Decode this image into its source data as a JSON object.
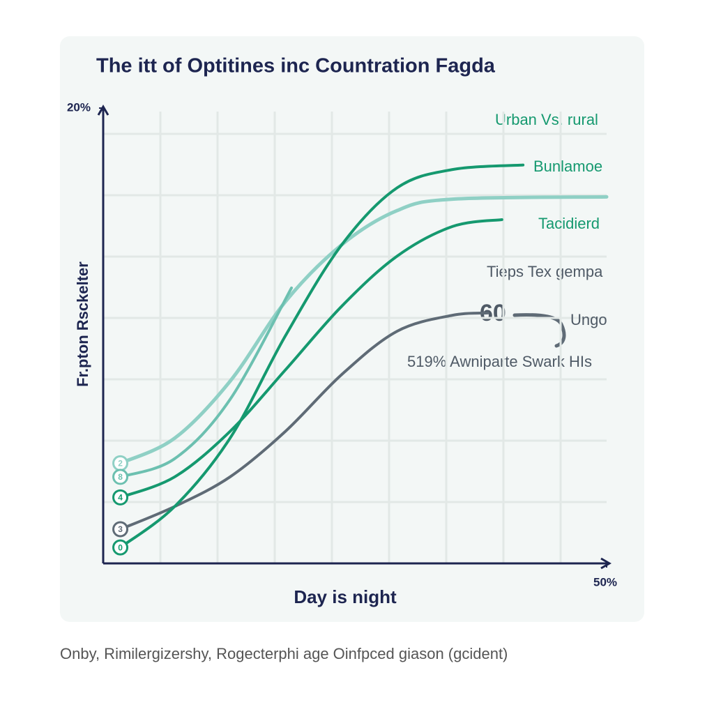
{
  "chart_data": {
    "type": "line",
    "title": "The itt of Optitines inc Countration Fagda",
    "x_label": "Day is night",
    "y_label": "Fr.pton Rsckelter",
    "legend_title": "Urban Vs. rural",
    "annotations": [
      "Tieps Tex gempa",
      "519% Awniparte Swark HIs",
      "60"
    ],
    "caption": "Onby, Rimilergizershy, Rogecterphi age Oinfpced giason (gcident)",
    "xlim": [
      0,
      50
    ],
    "xticks": [
      {
        "value": 50,
        "label": "50%"
      }
    ],
    "ylim": [
      0,
      20
    ],
    "yticks": [
      {
        "value": 20,
        "label": "20%"
      }
    ],
    "grid": true,
    "series": [
      {
        "marker_label": "2",
        "color": "#8fd0c5",
        "x": [
          1.7,
          7.1,
          12.6,
          18.1,
          23.7,
          29.2,
          34.7,
          50
        ],
        "values": [
          4.4,
          5.5,
          8,
          11.5,
          14,
          15.5,
          16,
          16.1
        ]
      },
      {
        "marker_label": "8",
        "color": "#6cc0b0",
        "x": [
          1.7,
          7.1,
          12.6,
          18.7
        ],
        "values": [
          3.8,
          4.6,
          7.2,
          12.1
        ]
      },
      {
        "name": "Tacidierd",
        "marker_label": "4",
        "color": "#15996f",
        "x": [
          1.7,
          7.1,
          12.6,
          18.1,
          23.7,
          29.2,
          34.7,
          39.6
        ],
        "values": [
          2.9,
          3.8,
          5.8,
          8.5,
          11.3,
          13.5,
          14.8,
          15.1
        ]
      },
      {
        "name": "Ungo",
        "marker_label": "3",
        "color": "#5f6b76",
        "x": [
          1.7,
          7.1,
          12.6,
          18.1,
          23.7,
          29.2,
          34.7,
          38.2
        ],
        "values": [
          1.5,
          2.5,
          3.8,
          5.8,
          8.3,
          10.2,
          10.9,
          11
        ]
      },
      {
        "name": "Bunlamoe",
        "marker_label": "0",
        "color": "#15996f",
        "x": [
          1.7,
          7.1,
          12.6,
          18.1,
          23.7,
          29.2,
          34.7,
          41.7
        ],
        "values": [
          0.7,
          2.5,
          5.5,
          10,
          14,
          16.5,
          17.3,
          17.5
        ]
      }
    ]
  }
}
